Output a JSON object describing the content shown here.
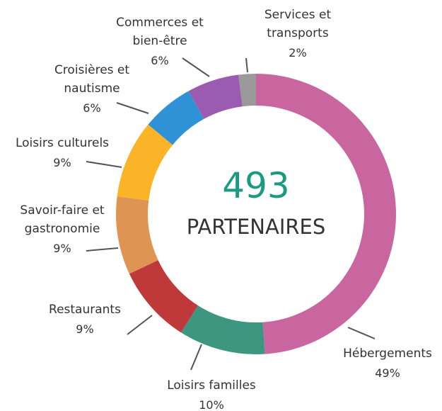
{
  "chart_data": {
    "type": "donut",
    "center_value": 493,
    "center_label": "PARTENAIRES",
    "categories": [
      "Hébergements",
      "Loisirs familles",
      "Restaurants",
      "Savoir-faire et gastronomie",
      "Loisirs culturels",
      "Croisières et nautisme",
      "Commerces et bien-être",
      "Services et transports"
    ],
    "values": [
      49,
      10,
      9,
      9,
      9,
      6,
      6,
      2
    ],
    "value_labels": [
      "49%",
      "10%",
      "9%",
      "9%",
      "9%",
      "6%",
      "6%",
      "2%"
    ],
    "colors": [
      "#c9669f",
      "#3d9680",
      "#c0393a",
      "#e09454",
      "#fbb428",
      "#2f92d6",
      "#9b5bb0",
      "#9a9a9a"
    ]
  }
}
